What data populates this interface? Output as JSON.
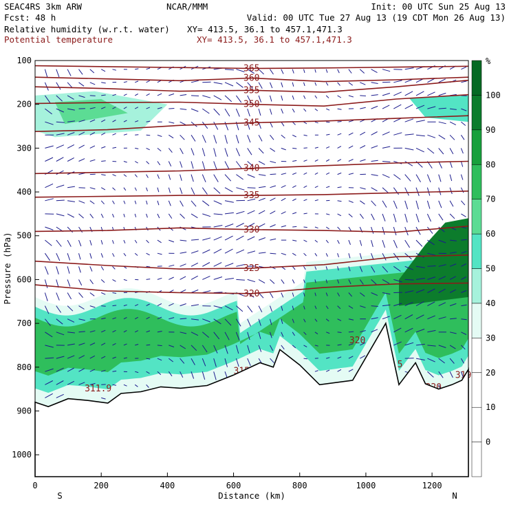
{
  "header": {
    "model": "SEAC4RS  3km ARW",
    "org": "NCAR/MMM",
    "init": "Init: 00 UTC Sun 25 Aug 13",
    "fcst": "Fcst:   48 h",
    "valid": "Valid: 00 UTC Tue 27 Aug 13 (19 CDT Mon 26 Aug 13)",
    "field1": "Relative humidity (w.r.t. water)",
    "xy1": "XY= 413.5, 36.1 to 457.1,471.3",
    "field2": "Potential temperature",
    "xy2": "XY= 413.5, 36.1 to 457.1,471.3"
  },
  "colors": {
    "theta": "#8b1a1a",
    "wind": "#1a1a8c",
    "terrain": "#000000",
    "rh_scale": [
      "#ffffff",
      "#ffffff",
      "#ffffff",
      "#ffffff",
      "#e4fbf4",
      "#a6f2dc",
      "#53e4c4",
      "#5cdc94",
      "#2fbe5c",
      "#18a03c",
      "#0c7c2c",
      "#056a24"
    ]
  },
  "chart_data": {
    "type": "cross-section",
    "xlabel": "Distance (km)",
    "ylabel": "Pressure (hPa)",
    "xlim": [
      0,
      1310
    ],
    "ylim": [
      1050,
      100
    ],
    "x_ticks": [
      0,
      200,
      400,
      600,
      800,
      1000,
      1200
    ],
    "y_ticks": [
      100,
      200,
      300,
      400,
      500,
      600,
      700,
      800,
      900,
      1000
    ],
    "x_end_labels": {
      "left": "S",
      "right": "N"
    },
    "colorbar": {
      "unit": "%",
      "tick_labels": [
        0,
        10,
        20,
        30,
        40,
        50,
        60,
        70,
        80,
        90,
        100
      ],
      "levels": [
        -10,
        0,
        10,
        20,
        30,
        40,
        50,
        60,
        70,
        80,
        90,
        100,
        110
      ]
    },
    "theta_contours": [
      {
        "label": "365",
        "p": [
          112,
          114,
          116,
          118,
          117,
          115,
          113
        ]
      },
      {
        "label": "360",
        "p": [
          138,
          142,
          146,
          140,
          148,
          144,
          138
        ]
      },
      {
        "label": "355",
        "p": [
          160,
          164,
          170,
          168,
          172,
          160,
          145
        ]
      },
      {
        "label": "350",
        "p": [
          198,
          196,
          195,
          200,
          204,
          188,
          178
        ]
      },
      {
        "label": "345",
        "p": [
          262,
          258,
          248,
          242,
          238,
          232,
          226
        ]
      },
      {
        "label": "340",
        "p": [
          358,
          355,
          352,
          346,
          340,
          334,
          330
        ]
      },
      {
        "label": "335",
        "p": [
          412,
          410,
          408,
          408,
          406,
          402,
          398
        ]
      },
      {
        "label": "330",
        "p": [
          490,
          488,
          482,
          486,
          488,
          492,
          478
        ]
      },
      {
        "label": "325",
        "p": [
          558,
          568,
          576,
          574,
          566,
          548,
          544
        ]
      },
      {
        "label": "320",
        "p": [
          612,
          626,
          630,
          632,
          618,
          610,
          608
        ]
      }
    ],
    "theta_low_labels": [
      "320",
      "319.5",
      "319",
      "311.9",
      "315",
      "320"
    ],
    "terrain_p": [
      880,
      890,
      872,
      876,
      882,
      860,
      856,
      845,
      848,
      842,
      818,
      790,
      800,
      760,
      795,
      840,
      830,
      700,
      840,
      790,
      838,
      850,
      840,
      830,
      805
    ],
    "terrain_x": [
      0,
      40,
      100,
      160,
      220,
      260,
      320,
      380,
      440,
      520,
      600,
      680,
      720,
      740,
      800,
      860,
      960,
      1060,
      1100,
      1150,
      1180,
      1220,
      1260,
      1290,
      1310
    ]
  }
}
